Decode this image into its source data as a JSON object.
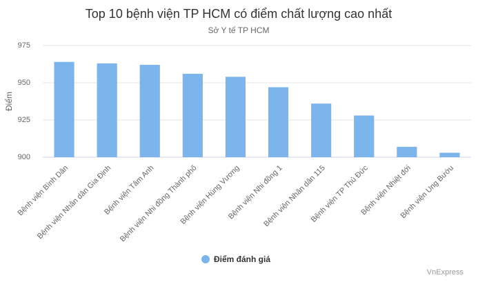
{
  "chart_data": {
    "type": "bar",
    "title": "Top 10 bệnh viện TP HCM có điểm chất lượng cao nhất",
    "subtitle": "Sở Y tế TP HCM",
    "y_label": "Điểm",
    "credit": "VnExpress",
    "categories": [
      "Bệnh viện Bình Dân",
      "Bệnh viện Nhân dân Gia Định",
      "Bệnh viện Tâm Anh",
      "Bệnh viện Nhi đồng Thành phố",
      "Bệnh viện Hùng Vương",
      "Bệnh viện Nhi đồng 1",
      "Bệnh viện Nhân dân 115",
      "Bệnh viện TP Thủ Đức",
      "Bệnh viện Nhiệt đới",
      "Bệnh viện Ung Bướu"
    ],
    "series": [
      {
        "name": "Điểm đánh giá",
        "color": "#7cb5ec",
        "values": [
          964,
          963,
          962,
          956,
          954,
          947,
          936,
          928,
          907,
          903
        ]
      }
    ],
    "ylim": [
      900,
      975
    ],
    "yticks": [
      900,
      925,
      950,
      975
    ],
    "grid": true,
    "legend": "bottom"
  }
}
